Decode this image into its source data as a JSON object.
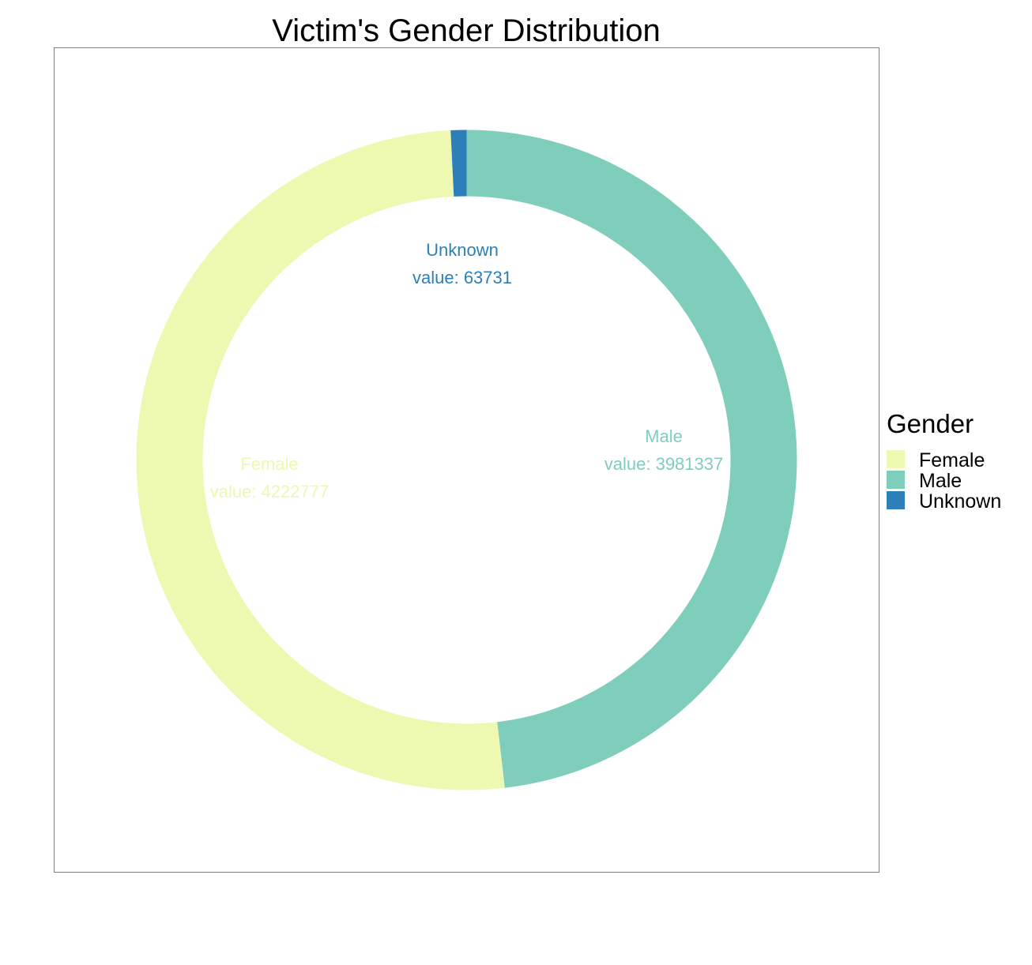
{
  "chart_data": {
    "type": "pie",
    "style": "donut",
    "title": "Victim's Gender Distribution",
    "legend_title": "Gender",
    "legend_position": "right",
    "start_angle_note": "clockwise from top",
    "slices": [
      {
        "label": "Female",
        "value": 4222777,
        "color": "#edf8b1",
        "label_text": "Female",
        "value_text": "value: 4222777"
      },
      {
        "label": "Male",
        "value": 3981337,
        "color": "#7fcdbb",
        "label_text": "Male",
        "value_text": "value: 3981337"
      },
      {
        "label": "Unknown",
        "value": 63731,
        "color": "#2c7fb8",
        "label_text": "Unknown",
        "value_text": "value: 63731"
      }
    ],
    "legend": [
      "Female",
      "Male",
      "Unknown"
    ]
  }
}
